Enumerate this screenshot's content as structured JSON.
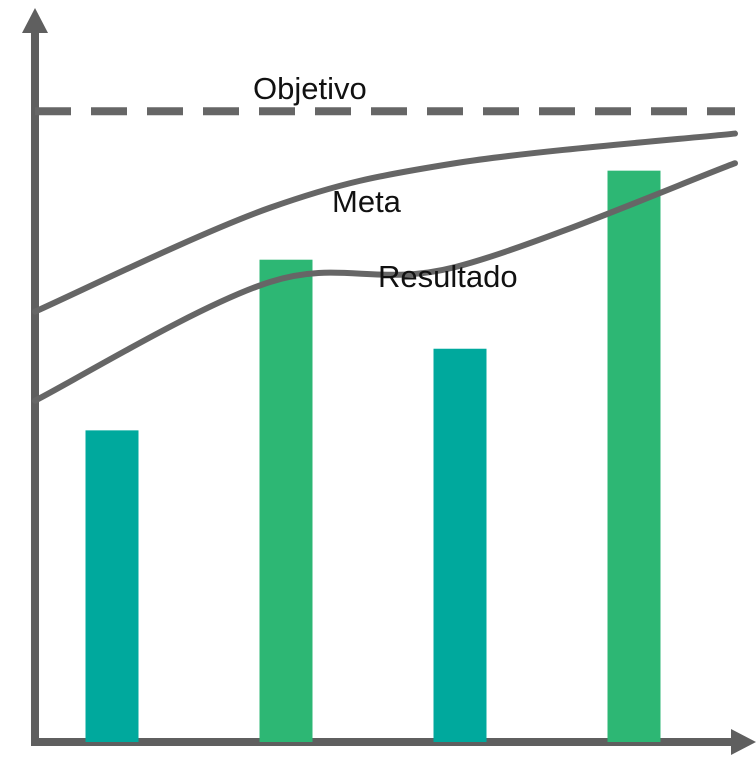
{
  "chart_data": {
    "type": "bar",
    "bars": [
      {
        "value": 0.42,
        "color": "#00a99d"
      },
      {
        "value": 0.65,
        "color": "#2db774"
      },
      {
        "value": 0.53,
        "color": "#00a99d"
      },
      {
        "value": 0.77,
        "color": "#2db774"
      }
    ],
    "lines": [
      {
        "name": "Objetivo",
        "style": "dashed",
        "values": [
          0.85,
          0.85,
          0.85,
          0.85
        ]
      },
      {
        "name": "Meta",
        "style": "solid",
        "values": [
          0.58,
          0.72,
          0.78,
          0.82
        ]
      },
      {
        "name": "Resultado",
        "style": "solid",
        "values": [
          0.46,
          0.62,
          0.64,
          0.78
        ]
      }
    ],
    "labels": {
      "objetivo": "Objetivo",
      "meta": "Meta",
      "resultado": "Resultado"
    }
  }
}
